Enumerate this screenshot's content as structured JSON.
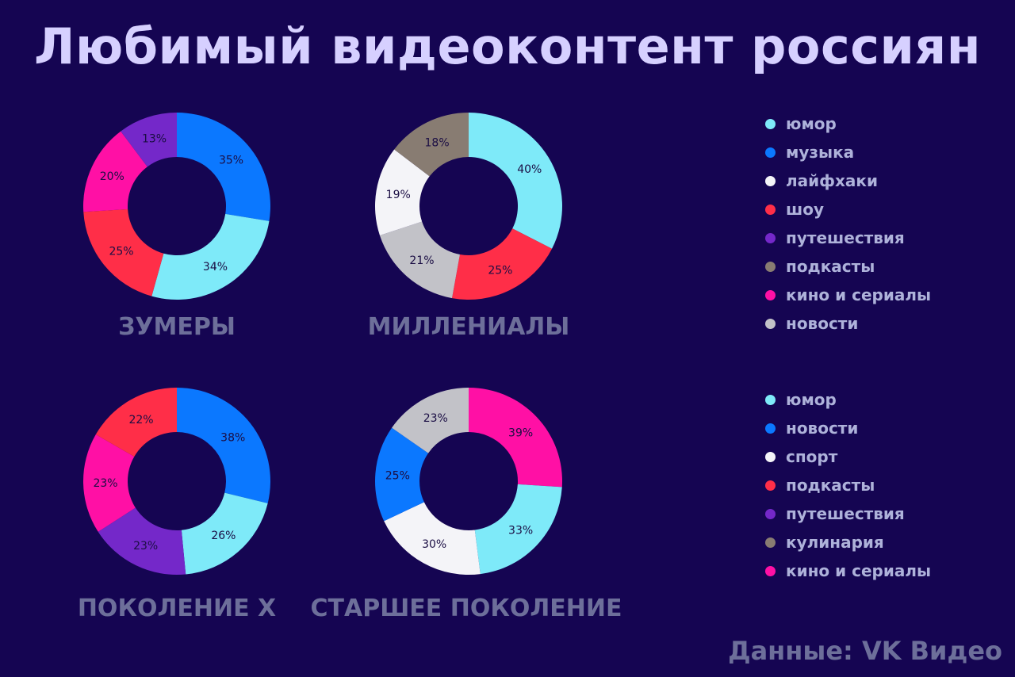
{
  "title": "Любимый видеоконтент россиян",
  "source": "Данные: VK Видео",
  "colors": {
    "юмор": "#7eeaf9",
    "музыка": "#0b78ff",
    "лайфхаки": "#f4f4f8",
    "шоу": "#ff2e48",
    "путешествия": "#7428c9",
    "подкасты": "#887c72",
    "кино и сериалы": "#ff10a5",
    "новости": "#c2c2c8"
  },
  "legends": [
    {
      "items": [
        {
          "label": "юмор",
          "color": "#7eeaf9"
        },
        {
          "label": "музыка",
          "color": "#0b78ff"
        },
        {
          "label": "лайфхаки",
          "color": "#f4f4f8"
        },
        {
          "label": "шоу",
          "color": "#ff2e48"
        },
        {
          "label": "путешествия",
          "color": "#7428c9"
        },
        {
          "label": "подкасты",
          "color": "#887c72"
        },
        {
          "label": "кино и сериалы",
          "color": "#ff10a5"
        },
        {
          "label": "новости",
          "color": "#c2c2c8"
        }
      ]
    },
    {
      "items": [
        {
          "label": "юмор",
          "color": "#7eeaf9"
        },
        {
          "label": "новости",
          "color": "#0b78ff"
        },
        {
          "label": "спорт",
          "color": "#f4f4f8"
        },
        {
          "label": "подкасты",
          "color": "#ff2e48"
        },
        {
          "label": "путешествия",
          "color": "#7428c9"
        },
        {
          "label": "кулинария",
          "color": "#887c72"
        },
        {
          "label": "кино и сериалы",
          "color": "#ff10a5"
        }
      ]
    }
  ],
  "chart_data": [
    {
      "type": "pie",
      "label": "ЗУМЕРЫ",
      "slices": [
        {
          "value": 35,
          "label": "35%",
          "color": "#0b78ff"
        },
        {
          "value": 34,
          "label": "34%",
          "color": "#7eeaf9"
        },
        {
          "value": 25,
          "label": "25%",
          "color": "#ff2e48"
        },
        {
          "value": 20,
          "label": "20%",
          "color": "#ff10a5"
        },
        {
          "value": 13,
          "label": "13%",
          "color": "#7428c9"
        }
      ]
    },
    {
      "type": "pie",
      "label": "МИЛЛЕНИАЛЫ",
      "slices": [
        {
          "value": 40,
          "label": "40%",
          "color": "#7eeaf9"
        },
        {
          "value": 25,
          "label": "25%",
          "color": "#ff2e48"
        },
        {
          "value": 21,
          "label": "21%",
          "color": "#c2c2c8"
        },
        {
          "value": 19,
          "label": "19%",
          "color": "#f4f4f8"
        },
        {
          "value": 18,
          "label": "18%",
          "color": "#887c72"
        }
      ]
    },
    {
      "type": "pie",
      "label": "ПОКОЛЕНИЕ X",
      "slices": [
        {
          "value": 38,
          "label": "38%",
          "color": "#0b78ff"
        },
        {
          "value": 26,
          "label": "26%",
          "color": "#7eeaf9"
        },
        {
          "value": 23,
          "label": "23%",
          "color": "#7428c9"
        },
        {
          "value": 23,
          "label": "23%",
          "color": "#ff10a5"
        },
        {
          "value": 22,
          "label": "22%",
          "color": "#ff2e48"
        }
      ]
    },
    {
      "type": "pie",
      "label": "СТАРШЕЕ ПОКОЛЕНИЕ",
      "slices": [
        {
          "value": 39,
          "label": "39%",
          "color": "#ff10a5"
        },
        {
          "value": 33,
          "label": "33%",
          "color": "#7eeaf9"
        },
        {
          "value": 30,
          "label": "30%",
          "color": "#f4f4f8"
        },
        {
          "value": 25,
          "label": "25%",
          "color": "#0b78ff"
        },
        {
          "value": 23,
          "label": "23%",
          "color": "#c2c2c8"
        }
      ]
    }
  ]
}
